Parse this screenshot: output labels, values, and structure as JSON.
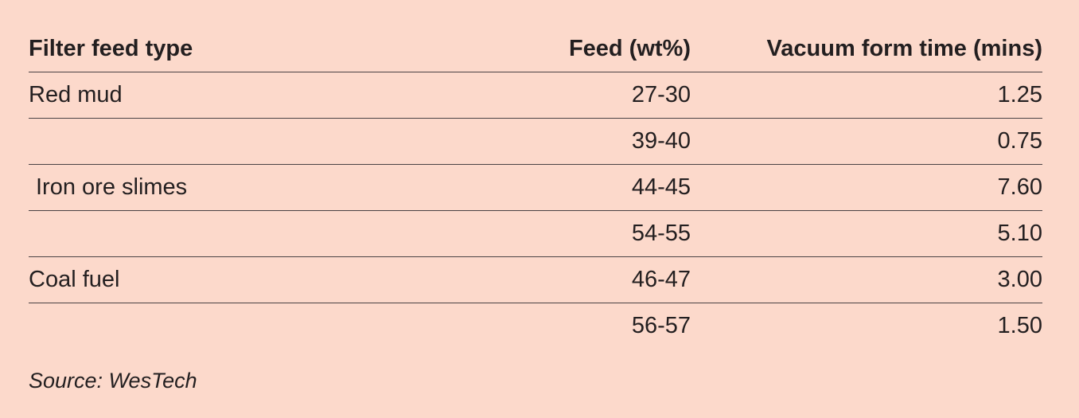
{
  "chart_data": {
    "type": "table",
    "columns": [
      "Filter feed type",
      "Feed (wt%)",
      "Vacuum form time (mins)"
    ],
    "rows": [
      {
        "type": "Red mud",
        "feed": "27-30",
        "time": "1.25"
      },
      {
        "type": "",
        "feed": "39-40",
        "time": "0.75"
      },
      {
        "type": "Iron ore slimes",
        "feed": "44-45",
        "time": "7.60"
      },
      {
        "type": "",
        "feed": "54-55",
        "time": "5.10"
      },
      {
        "type": "Coal fuel",
        "feed": "46-47",
        "time": "3.00"
      },
      {
        "type": "",
        "feed": "56-57",
        "time": "1.50"
      }
    ],
    "source": "Source: WesTech"
  },
  "colors": {
    "background": "#fcd9cb",
    "text": "#231f20",
    "rule": "#4a4244"
  }
}
